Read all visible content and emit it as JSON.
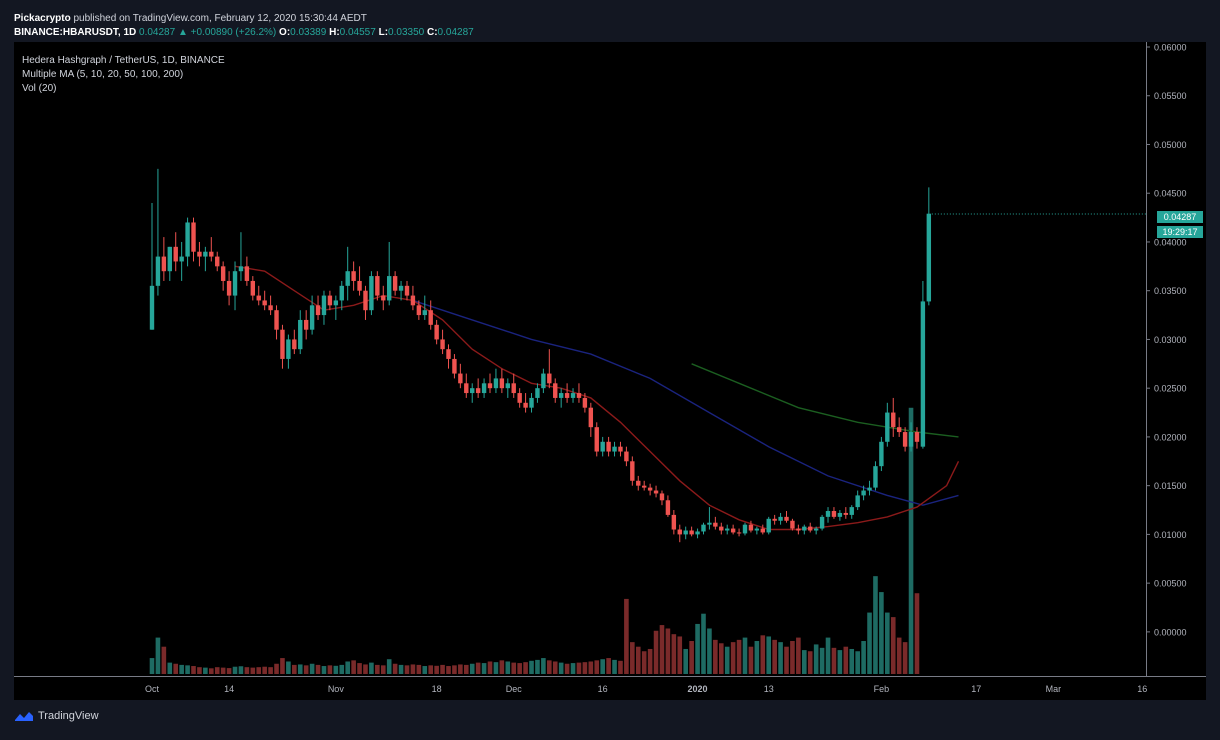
{
  "header": {
    "publisher": "Pickacrypto",
    "published_text": "published on TradingView.com, February 12, 2020 15:30:44 AEDT",
    "symbol": "BINANCE:HBARUSDT, 1D",
    "last": "0.04287",
    "change": "+0.00890 (+26.2%)",
    "o_label": "O:",
    "o_value": "0.03389",
    "h_label": "H:",
    "h_value": "0.04557",
    "l_label": "L:",
    "l_value": "0.03350",
    "c_label": "C:",
    "c_value": "0.04287"
  },
  "legend": {
    "title": "Hedera Hashgraph / TetherUS, 1D, BINANCE",
    "ma": "Multiple MA (5, 10, 20, 50, 100, 200)",
    "vol": "Vol (20)"
  },
  "price_tag": "0.04287",
  "countdown_tag": "19:29:17",
  "footer": {
    "brand": "TradingView"
  },
  "colors": {
    "up": "#26a69a",
    "down": "#ef5350",
    "ma_red": "#8b1a1a",
    "ma_blue": "#1a237e",
    "ma_green": "#1b5e20",
    "background": "#000000"
  },
  "chart_data": {
    "type": "candlestick",
    "y_ticks": [
      "0.06000",
      "0.05500",
      "0.05000",
      "0.04500",
      "0.04000",
      "0.03500",
      "0.03000",
      "0.02500",
      "0.02000",
      "0.01500",
      "0.01000",
      "0.00500",
      "0.00000"
    ],
    "ylim": [
      -0.0035,
      0.06
    ],
    "x_ticks": [
      {
        "label": "Oct",
        "day": 1
      },
      {
        "label": "14",
        "day": 14
      },
      {
        "label": "Nov",
        "day": 32
      },
      {
        "label": "18",
        "day": 49
      },
      {
        "label": "Dec",
        "day": 62
      },
      {
        "label": "16",
        "day": 77
      },
      {
        "label": "2020",
        "day": 93
      },
      {
        "label": "13",
        "day": 105
      },
      {
        "label": "Feb",
        "day": 124
      },
      {
        "label": "17",
        "day": 140
      },
      {
        "label": "Mar",
        "day": 153
      },
      {
        "label": "16",
        "day": 168
      }
    ],
    "candles": [
      [
        0.031,
        0.044,
        0.031,
        0.0355
      ],
      [
        0.0355,
        0.0475,
        0.0345,
        0.0385
      ],
      [
        0.0385,
        0.0405,
        0.036,
        0.037
      ],
      [
        0.037,
        0.0395,
        0.036,
        0.0395
      ],
      [
        0.0395,
        0.041,
        0.037,
        0.038
      ],
      [
        0.038,
        0.04,
        0.036,
        0.0385
      ],
      [
        0.0385,
        0.0425,
        0.0375,
        0.042
      ],
      [
        0.042,
        0.0425,
        0.038,
        0.039
      ],
      [
        0.039,
        0.04,
        0.0375,
        0.0385
      ],
      [
        0.0385,
        0.0395,
        0.037,
        0.039
      ],
      [
        0.039,
        0.0405,
        0.038,
        0.0385
      ],
      [
        0.0385,
        0.039,
        0.037,
        0.0375
      ],
      [
        0.0375,
        0.038,
        0.035,
        0.036
      ],
      [
        0.036,
        0.037,
        0.0335,
        0.0345
      ],
      [
        0.0345,
        0.038,
        0.033,
        0.037
      ],
      [
        0.037,
        0.041,
        0.036,
        0.0375
      ],
      [
        0.0375,
        0.0385,
        0.0355,
        0.036
      ],
      [
        0.036,
        0.0365,
        0.034,
        0.0345
      ],
      [
        0.0345,
        0.0355,
        0.0335,
        0.034
      ],
      [
        0.034,
        0.035,
        0.033,
        0.0335
      ],
      [
        0.0335,
        0.0345,
        0.0325,
        0.033
      ],
      [
        0.033,
        0.0335,
        0.03,
        0.031
      ],
      [
        0.031,
        0.0315,
        0.027,
        0.028
      ],
      [
        0.028,
        0.0305,
        0.027,
        0.03
      ],
      [
        0.03,
        0.031,
        0.0285,
        0.029
      ],
      [
        0.029,
        0.033,
        0.0285,
        0.032
      ],
      [
        0.032,
        0.033,
        0.03,
        0.031
      ],
      [
        0.031,
        0.0345,
        0.0305,
        0.0335
      ],
      [
        0.0335,
        0.0345,
        0.032,
        0.0325
      ],
      [
        0.0325,
        0.035,
        0.0315,
        0.0345
      ],
      [
        0.0345,
        0.035,
        0.033,
        0.0335
      ],
      [
        0.0335,
        0.0345,
        0.032,
        0.034
      ],
      [
        0.034,
        0.036,
        0.033,
        0.0355
      ],
      [
        0.0355,
        0.0395,
        0.034,
        0.037
      ],
      [
        0.037,
        0.038,
        0.035,
        0.036
      ],
      [
        0.036,
        0.0375,
        0.0345,
        0.035
      ],
      [
        0.035,
        0.0355,
        0.032,
        0.033
      ],
      [
        0.033,
        0.037,
        0.0325,
        0.0365
      ],
      [
        0.0365,
        0.037,
        0.034,
        0.0345
      ],
      [
        0.0345,
        0.0355,
        0.033,
        0.034
      ],
      [
        0.034,
        0.04,
        0.0335,
        0.0365
      ],
      [
        0.0365,
        0.037,
        0.0345,
        0.035
      ],
      [
        0.035,
        0.036,
        0.034,
        0.0355
      ],
      [
        0.0355,
        0.036,
        0.034,
        0.0345
      ],
      [
        0.0345,
        0.0355,
        0.033,
        0.0335
      ],
      [
        0.0335,
        0.034,
        0.032,
        0.0325
      ],
      [
        0.0325,
        0.0345,
        0.032,
        0.033
      ],
      [
        0.033,
        0.034,
        0.031,
        0.0315
      ],
      [
        0.0315,
        0.032,
        0.0295,
        0.03
      ],
      [
        0.03,
        0.031,
        0.0285,
        0.029
      ],
      [
        0.029,
        0.0295,
        0.027,
        0.028
      ],
      [
        0.028,
        0.0285,
        0.026,
        0.0265
      ],
      [
        0.0265,
        0.0275,
        0.025,
        0.0255
      ],
      [
        0.0255,
        0.0265,
        0.024,
        0.0245
      ],
      [
        0.0245,
        0.0255,
        0.0235,
        0.025
      ],
      [
        0.025,
        0.026,
        0.024,
        0.0245
      ],
      [
        0.0245,
        0.026,
        0.024,
        0.0255
      ],
      [
        0.0255,
        0.0265,
        0.0245,
        0.025
      ],
      [
        0.025,
        0.027,
        0.0245,
        0.026
      ],
      [
        0.026,
        0.027,
        0.0245,
        0.025
      ],
      [
        0.025,
        0.026,
        0.024,
        0.0255
      ],
      [
        0.0255,
        0.0265,
        0.024,
        0.0245
      ],
      [
        0.0245,
        0.025,
        0.023,
        0.0235
      ],
      [
        0.0235,
        0.0245,
        0.0225,
        0.023
      ],
      [
        0.023,
        0.0245,
        0.0225,
        0.024
      ],
      [
        0.024,
        0.0255,
        0.0235,
        0.025
      ],
      [
        0.025,
        0.027,
        0.0245,
        0.0265
      ],
      [
        0.0265,
        0.029,
        0.025,
        0.0255
      ],
      [
        0.0255,
        0.026,
        0.0235,
        0.024
      ],
      [
        0.024,
        0.025,
        0.023,
        0.0245
      ],
      [
        0.0245,
        0.0255,
        0.0235,
        0.024
      ],
      [
        0.024,
        0.025,
        0.0235,
        0.0245
      ],
      [
        0.0245,
        0.0255,
        0.0235,
        0.024
      ],
      [
        0.024,
        0.0245,
        0.0225,
        0.023
      ],
      [
        0.023,
        0.0235,
        0.02,
        0.021
      ],
      [
        0.021,
        0.0215,
        0.018,
        0.0185
      ],
      [
        0.0185,
        0.02,
        0.018,
        0.0195
      ],
      [
        0.0195,
        0.02,
        0.018,
        0.0185
      ],
      [
        0.0185,
        0.0195,
        0.018,
        0.019
      ],
      [
        0.019,
        0.0195,
        0.018,
        0.0185
      ],
      [
        0.0185,
        0.019,
        0.017,
        0.0175
      ],
      [
        0.0175,
        0.018,
        0.015,
        0.0155
      ],
      [
        0.0155,
        0.016,
        0.0145,
        0.015
      ],
      [
        0.015,
        0.0155,
        0.0145,
        0.0148
      ],
      [
        0.0148,
        0.0152,
        0.014,
        0.0145
      ],
      [
        0.0145,
        0.015,
        0.0138,
        0.0142
      ],
      [
        0.0142,
        0.0145,
        0.013,
        0.0135
      ],
      [
        0.0135,
        0.014,
        0.0118,
        0.012
      ],
      [
        0.012,
        0.0125,
        0.01,
        0.0105
      ],
      [
        0.0105,
        0.011,
        0.0092,
        0.01
      ],
      [
        0.01,
        0.0108,
        0.0095,
        0.0104
      ],
      [
        0.0104,
        0.0108,
        0.0098,
        0.01
      ],
      [
        0.01,
        0.0106,
        0.0096,
        0.0103
      ],
      [
        0.0103,
        0.0112,
        0.01,
        0.011
      ],
      [
        0.011,
        0.0128,
        0.0105,
        0.0112
      ],
      [
        0.0112,
        0.0118,
        0.0105,
        0.0108
      ],
      [
        0.0108,
        0.0112,
        0.01,
        0.0104
      ],
      [
        0.0104,
        0.011,
        0.01,
        0.0106
      ],
      [
        0.0106,
        0.011,
        0.01,
        0.0102
      ],
      [
        0.0102,
        0.0106,
        0.0098,
        0.0101
      ],
      [
        0.0101,
        0.0112,
        0.0099,
        0.011
      ],
      [
        0.011,
        0.0114,
        0.0102,
        0.0104
      ],
      [
        0.0104,
        0.0108,
        0.01,
        0.0106
      ],
      [
        0.0106,
        0.011,
        0.01,
        0.0102
      ],
      [
        0.0102,
        0.0118,
        0.01,
        0.0116
      ],
      [
        0.0116,
        0.012,
        0.011,
        0.0114
      ],
      [
        0.0114,
        0.0122,
        0.011,
        0.0118
      ],
      [
        0.0118,
        0.0124,
        0.0112,
        0.0114
      ],
      [
        0.0114,
        0.0116,
        0.0104,
        0.0106
      ],
      [
        0.0106,
        0.011,
        0.01,
        0.0104
      ],
      [
        0.0104,
        0.011,
        0.01,
        0.0108
      ],
      [
        0.0108,
        0.0112,
        0.0102,
        0.0104
      ],
      [
        0.0104,
        0.0108,
        0.01,
        0.0106
      ],
      [
        0.0106,
        0.012,
        0.0104,
        0.0118
      ],
      [
        0.0118,
        0.0128,
        0.0112,
        0.0124
      ],
      [
        0.0124,
        0.0128,
        0.0116,
        0.0118
      ],
      [
        0.0118,
        0.0125,
        0.0114,
        0.0122
      ],
      [
        0.0122,
        0.0128,
        0.0116,
        0.012
      ],
      [
        0.012,
        0.013,
        0.0116,
        0.0128
      ],
      [
        0.0128,
        0.0145,
        0.0125,
        0.014
      ],
      [
        0.014,
        0.015,
        0.0135,
        0.0145
      ],
      [
        0.0145,
        0.0155,
        0.014,
        0.0148
      ],
      [
        0.0148,
        0.0175,
        0.0145,
        0.017
      ],
      [
        0.017,
        0.02,
        0.0165,
        0.0195
      ],
      [
        0.0195,
        0.0235,
        0.019,
        0.0225
      ],
      [
        0.0225,
        0.024,
        0.02,
        0.021
      ],
      [
        0.021,
        0.022,
        0.02,
        0.0205
      ],
      [
        0.0205,
        0.021,
        0.0185,
        0.019
      ],
      [
        0.019,
        0.0215,
        0.0185,
        0.0205
      ],
      [
        0.0205,
        0.021,
        0.0188,
        0.0195
      ],
      [
        0.019,
        0.036,
        0.0188,
        0.0339
      ],
      [
        0.0339,
        0.0456,
        0.0335,
        0.0429
      ]
    ],
    "volume": [
      70,
      160,
      120,
      50,
      45,
      40,
      38,
      35,
      30,
      28,
      25,
      30,
      28,
      26,
      32,
      34,
      30,
      28,
      30,
      32,
      30,
      45,
      70,
      55,
      40,
      42,
      38,
      45,
      40,
      35,
      38,
      36,
      40,
      55,
      60,
      48,
      42,
      50,
      40,
      38,
      65,
      45,
      40,
      38,
      42,
      40,
      35,
      38,
      36,
      40,
      35,
      38,
      42,
      40,
      45,
      50,
      48,
      55,
      52,
      60,
      55,
      50,
      48,
      52,
      58,
      62,
      70,
      60,
      55,
      50,
      45,
      48,
      50,
      52,
      55,
      60,
      65,
      70,
      62,
      58,
      330,
      140,
      120,
      100,
      110,
      190,
      215,
      200,
      175,
      165,
      110,
      145,
      220,
      265,
      200,
      150,
      135,
      120,
      140,
      150,
      160,
      120,
      145,
      170,
      165,
      150,
      140,
      120,
      145,
      160,
      105,
      100,
      130,
      115,
      160,
      115,
      105,
      120,
      110,
      100,
      145,
      270,
      430,
      360,
      270,
      250,
      160,
      140,
      1170,
      355
    ],
    "volume_scale_max": 1240,
    "ma_red": [
      [
        15,
        0.0375
      ],
      [
        20,
        0.037
      ],
      [
        25,
        0.035
      ],
      [
        30,
        0.033
      ],
      [
        35,
        0.0335
      ],
      [
        40,
        0.0345
      ],
      [
        45,
        0.034
      ],
      [
        50,
        0.032
      ],
      [
        55,
        0.029
      ],
      [
        60,
        0.027
      ],
      [
        65,
        0.0255
      ],
      [
        70,
        0.025
      ],
      [
        75,
        0.024
      ],
      [
        80,
        0.0215
      ],
      [
        85,
        0.0185
      ],
      [
        90,
        0.0155
      ],
      [
        95,
        0.013
      ],
      [
        100,
        0.0115
      ],
      [
        105,
        0.0105
      ],
      [
        110,
        0.0105
      ],
      [
        115,
        0.0108
      ],
      [
        120,
        0.0112
      ],
      [
        125,
        0.0118
      ],
      [
        130,
        0.0128
      ],
      [
        135,
        0.015
      ],
      [
        137,
        0.0175
      ]
    ],
    "ma_blue": [
      [
        45,
        0.034
      ],
      [
        55,
        0.032
      ],
      [
        65,
        0.03
      ],
      [
        75,
        0.0285
      ],
      [
        85,
        0.026
      ],
      [
        95,
        0.0225
      ],
      [
        105,
        0.019
      ],
      [
        115,
        0.016
      ],
      [
        125,
        0.014
      ],
      [
        131,
        0.013
      ],
      [
        137,
        0.014
      ]
    ],
    "ma_green": [
      [
        92,
        0.0275
      ],
      [
        100,
        0.0255
      ],
      [
        110,
        0.023
      ],
      [
        120,
        0.0215
      ],
      [
        130,
        0.0205
      ],
      [
        137,
        0.02
      ]
    ]
  }
}
